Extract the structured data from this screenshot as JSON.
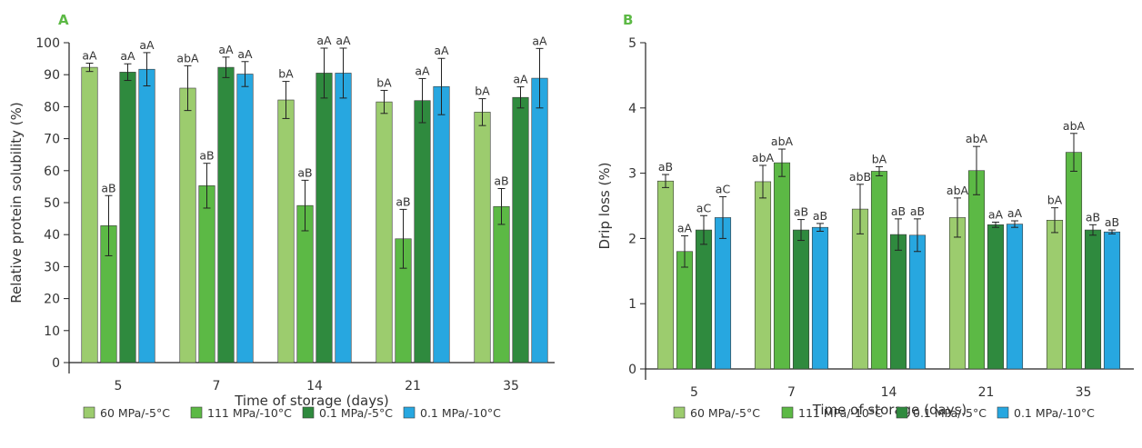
{
  "colors": {
    "series": [
      "#9ccc6e",
      "#5cb945",
      "#2f8a3e",
      "#27a7e0"
    ],
    "panel_label": "#5cb945",
    "axis": "#222222",
    "bar_stroke": "#3a3a3a"
  },
  "chart_data": [
    {
      "type": "bar",
      "panel": "A",
      "xlabel": "Time of storage (days)",
      "ylabel": "Relative protein solubility (%)",
      "ylim": [
        0,
        100
      ],
      "yticks": [
        0,
        10,
        20,
        30,
        40,
        50,
        60,
        70,
        80,
        90,
        100
      ],
      "categories": [
        "5",
        "7",
        "14",
        "21",
        "35"
      ],
      "legend_position": "bottom",
      "series": [
        {
          "name": "60 MPa/-5°C",
          "values": [
            92.3,
            85.8,
            82.1,
            81.5,
            78.3
          ],
          "errors": [
            1.3,
            7.0,
            5.8,
            3.6,
            4.2
          ],
          "labels": [
            "aA",
            "abA",
            "bA",
            "bA",
            "bA"
          ]
        },
        {
          "name": "111 MPa/-10°C",
          "values": [
            42.8,
            55.3,
            49.1,
            38.7,
            48.8
          ],
          "errors": [
            9.4,
            7.0,
            7.9,
            9.2,
            5.6
          ],
          "labels": [
            "aB",
            "aB",
            "aB",
            "aB",
            "aB"
          ]
        },
        {
          "name": "0.1 MPa/-5°C",
          "values": [
            90.8,
            92.3,
            90.5,
            81.9,
            82.9
          ],
          "errors": [
            2.6,
            3.2,
            7.8,
            6.9,
            3.3
          ],
          "labels": [
            "aA",
            "aA",
            "aA",
            "aA",
            "aA"
          ]
        },
        {
          "name": "0.1 MPa/-10°C",
          "values": [
            91.7,
            90.2,
            90.5,
            86.3,
            88.9
          ],
          "errors": [
            5.2,
            3.9,
            7.8,
            8.8,
            9.3
          ],
          "labels": [
            "aA",
            "aA",
            "aA",
            "aA",
            "aA"
          ]
        }
      ]
    },
    {
      "type": "bar",
      "panel": "B",
      "xlabel": "Time of storage (days)",
      "ylabel": "Drip loss (%)",
      "ylim": [
        0,
        5
      ],
      "yticks": [
        0,
        1,
        2,
        3,
        4,
        5
      ],
      "categories": [
        "5",
        "7",
        "14",
        "21",
        "35"
      ],
      "legend_position": "bottom",
      "series": [
        {
          "name": "60 MPa/-5°C",
          "values": [
            2.88,
            2.87,
            2.45,
            2.32,
            2.28
          ],
          "errors": [
            0.1,
            0.25,
            0.38,
            0.3,
            0.19
          ],
          "labels": [
            "aB",
            "abA",
            "abB",
            "abA",
            "bA"
          ]
        },
        {
          "name": "111 MPa/-10°C",
          "values": [
            1.8,
            3.16,
            3.03,
            3.04,
            3.32
          ],
          "errors": [
            0.24,
            0.21,
            0.07,
            0.37,
            0.29
          ],
          "labels": [
            "aA",
            "abA",
            "bA",
            "abA",
            "abA"
          ]
        },
        {
          "name": "0.1 MPa/-5°C",
          "values": [
            2.13,
            2.13,
            2.06,
            2.21,
            2.13
          ],
          "errors": [
            0.22,
            0.16,
            0.24,
            0.04,
            0.08
          ],
          "labels": [
            "aC",
            "aB",
            "aB",
            "aA",
            "aB"
          ]
        },
        {
          "name": "0.1 MPa/-10°C",
          "values": [
            2.32,
            2.17,
            2.05,
            2.22,
            2.1
          ],
          "errors": [
            0.32,
            0.06,
            0.25,
            0.05,
            0.03
          ],
          "labels": [
            "aC",
            "aB",
            "aB",
            "aA",
            "aB"
          ]
        }
      ]
    }
  ]
}
